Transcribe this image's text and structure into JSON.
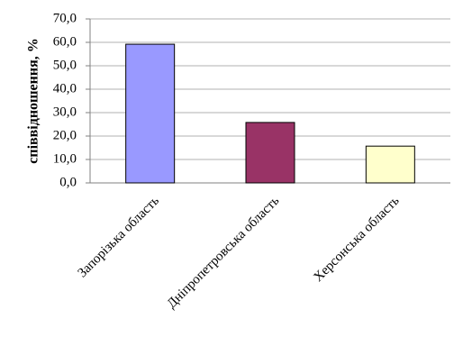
{
  "chart_data": {
    "type": "bar",
    "y_label": "співвідношення, %",
    "categories": [
      "Запорізька область",
      "Дніпропетровська область",
      "Херсонська область"
    ],
    "values": [
      59.2,
      25.8,
      15.7
    ],
    "colors": [
      "#9999ff",
      "#993366",
      "#ffffcc"
    ],
    "ylim": [
      0,
      70
    ],
    "yticks": [
      {
        "value": 0,
        "label": "0,0"
      },
      {
        "value": 10,
        "label": "10,0"
      },
      {
        "value": 20,
        "label": "20,0"
      },
      {
        "value": 30,
        "label": "30,0"
      },
      {
        "value": 40,
        "label": "40,0"
      },
      {
        "value": 50,
        "label": "50,0"
      },
      {
        "value": 60,
        "label": "60,0"
      },
      {
        "value": 70,
        "label": "70,0"
      }
    ],
    "grid": true
  }
}
